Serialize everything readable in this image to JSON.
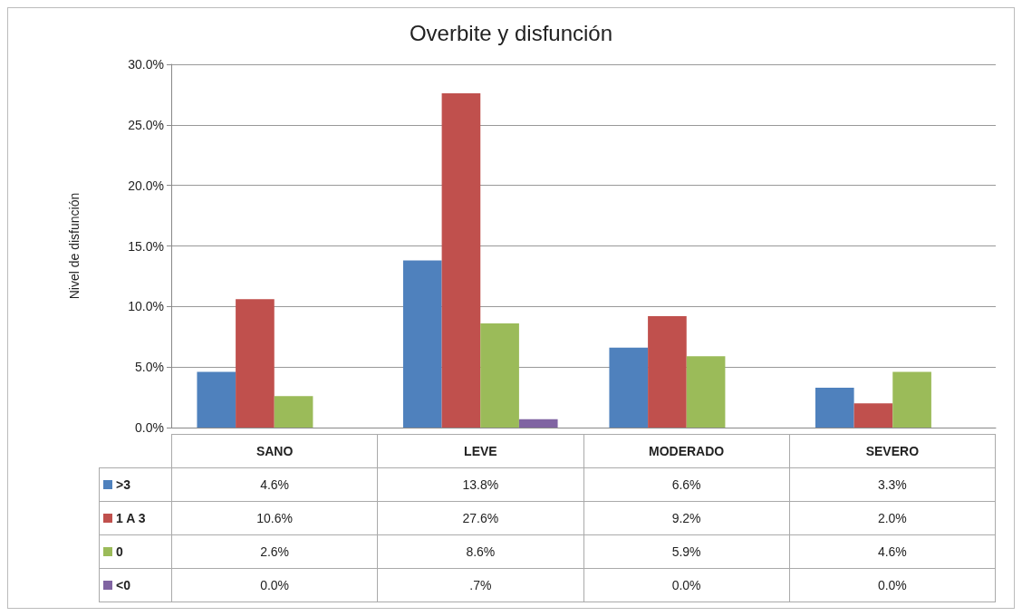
{
  "chart_data": {
    "type": "bar",
    "title": "Overbite y disfunción",
    "ylabel": "Nivel de disfunción",
    "categories": [
      "SANO",
      "LEVE",
      "MODERADO",
      "SEVERO"
    ],
    "series": [
      {
        "name": ">3",
        "color": "#4f81bd",
        "values": [
          4.6,
          13.8,
          6.6,
          3.3
        ],
        "value_labels": [
          "4.6%",
          "13.8%",
          "6.6%",
          "3.3%"
        ]
      },
      {
        "name": "1 A 3",
        "color": "#c0504d",
        "values": [
          10.6,
          27.6,
          9.2,
          2.0
        ],
        "value_labels": [
          "10.6%",
          "27.6%",
          "9.2%",
          "2.0%"
        ]
      },
      {
        "name": "0",
        "color": "#9bbb59",
        "values": [
          2.6,
          8.6,
          5.9,
          4.6
        ],
        "value_labels": [
          "2.6%",
          "8.6%",
          "5.9%",
          "4.6%"
        ]
      },
      {
        "name": "<0",
        "color": "#8064a2",
        "values": [
          0.0,
          0.7,
          0.0,
          0.0
        ],
        "value_labels": [
          "0.0%",
          ".7%",
          "0.0%",
          "0.0%"
        ]
      }
    ],
    "ylim": [
      0,
      30
    ],
    "yticks": [
      {
        "value": 0,
        "label": "0.0%"
      },
      {
        "value": 5,
        "label": "5.0%"
      },
      {
        "value": 10,
        "label": "10.0%"
      },
      {
        "value": 15,
        "label": "15.0%"
      },
      {
        "value": 20,
        "label": "20.0%"
      },
      {
        "value": 25,
        "label": "25.0%"
      },
      {
        "value": 30,
        "label": "30.0%"
      }
    ],
    "grid": "y",
    "legend": "bottom"
  }
}
